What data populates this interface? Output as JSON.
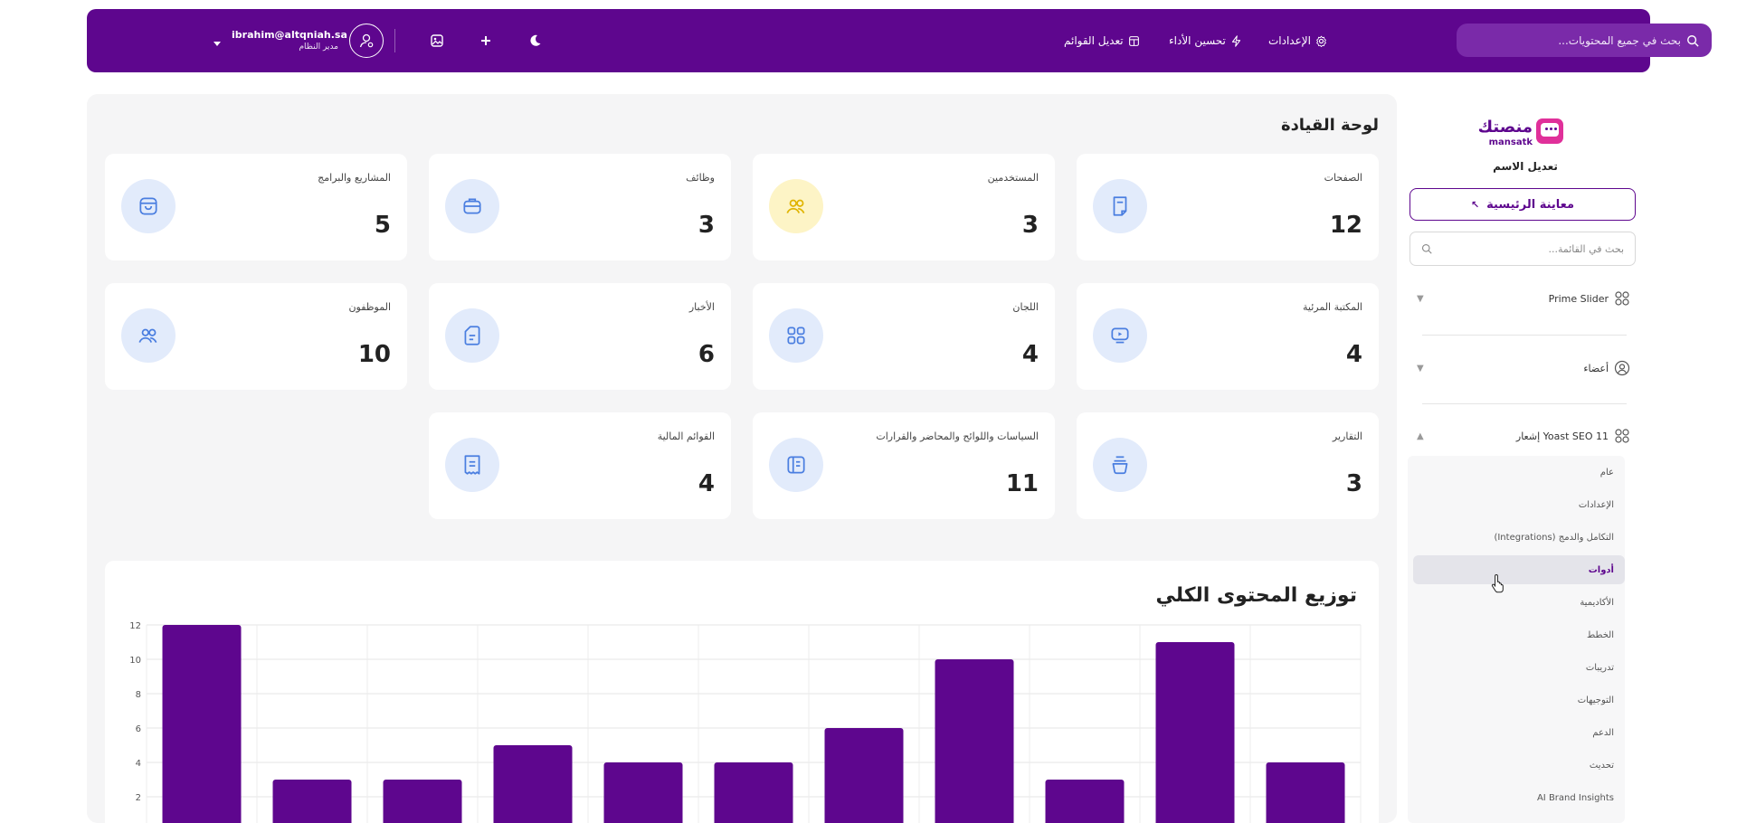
{
  "topbar": {
    "search_placeholder": "بحث في جميع المحتويات...",
    "nav": [
      {
        "label": "الإعدادات",
        "icon": "gear-icon"
      },
      {
        "label": "تحسين الأداء",
        "icon": "lightning-icon"
      },
      {
        "label": "تعديل القوائم",
        "icon": "list-icon"
      }
    ],
    "user": {
      "email": "ibrahim@altqniah.sa",
      "role": "مدير النظام"
    },
    "icons": [
      "image-icon",
      "plus-icon",
      "moon-icon"
    ]
  },
  "sidebar": {
    "logo_ar": "منصتك",
    "logo_en": "mansatk",
    "edit_name": "تعديل الاسم",
    "preview_button": "معاينة الرئيسية",
    "preview_arrow": "↖",
    "search_placeholder": "بحث في القائمة...",
    "menu": [
      {
        "label": "Prime Slider",
        "caret": "▼"
      },
      {
        "label": "أعضاء",
        "caret": "▼"
      },
      {
        "label": "Yoast SEO 11 إشعار",
        "caret": "▲"
      }
    ],
    "submenu": [
      "عام",
      "الإعدادات",
      "التكامل والدمج (Integrations)",
      "أدوات",
      "الأكاديمية",
      "الخطط",
      "تدريبات",
      "التوجيهات",
      "الدعم",
      "تحديث",
      "AI Brand Insights"
    ],
    "active_submenu": "أدوات"
  },
  "main": {
    "title": "لوحة القيادة",
    "cards": [
      {
        "label": "الصفحات",
        "value": "12",
        "icon": "page-icon"
      },
      {
        "label": "المستخدمين",
        "value": "3",
        "icon": "users-icon"
      },
      {
        "label": "وظائف",
        "value": "3",
        "icon": "briefcase-icon"
      },
      {
        "label": "المشاريع والبرامج",
        "value": "5",
        "icon": "bag-icon"
      },
      {
        "label": "المكتبة المرئية",
        "value": "4",
        "icon": "video-icon"
      },
      {
        "label": "اللجان",
        "value": "4",
        "icon": "grid-icon"
      },
      {
        "label": "الأخبار",
        "value": "6",
        "icon": "news-icon"
      },
      {
        "label": "الموظفون",
        "value": "10",
        "icon": "staff-icon"
      },
      {
        "label": "التقارير",
        "value": "3",
        "icon": "report-icon"
      },
      {
        "label": "السياسات واللوائح والمحاضر والقرارات",
        "value": "11",
        "icon": "book-icon"
      },
      {
        "label": "القوائم المالية",
        "value": "4",
        "icon": "receipt-icon"
      }
    ],
    "chart_title": "توزيع المحتوى الكلي"
  },
  "chart_data": {
    "type": "bar",
    "title": "توزيع المحتوى الكلي",
    "values": [
      12,
      3,
      3,
      5,
      4,
      4,
      6,
      10,
      3,
      11,
      4
    ],
    "ylim": [
      0,
      12
    ],
    "yticks": [
      "2",
      "4",
      "6",
      "8",
      "10",
      "12"
    ],
    "grid": true,
    "bar_color": "#5e068e"
  },
  "colors": {
    "brand": "#5e068e",
    "accent": "#e0309a",
    "icon_bg": "#e2ebfb"
  }
}
